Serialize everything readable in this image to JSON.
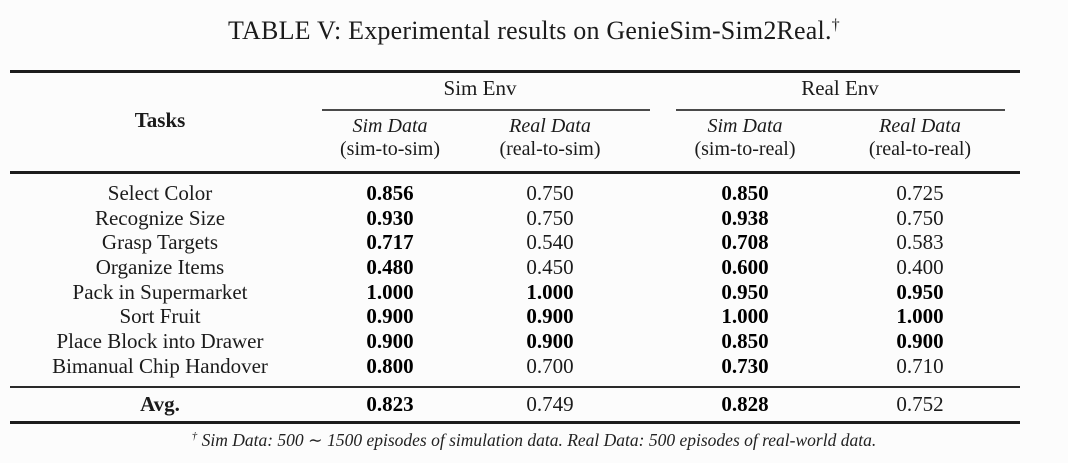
{
  "title": {
    "text": "TABLE V: Experimental results on GenieSim-Sim2Real.",
    "dagger": "†"
  },
  "table": {
    "tasks_header": "Tasks",
    "groups": [
      {
        "label": "Sim Env"
      },
      {
        "label": "Real Env"
      }
    ],
    "columns": [
      {
        "line1": "Sim Data",
        "line2": "(sim-to-sim)"
      },
      {
        "line1": "Real Data",
        "line2": "(real-to-sim)"
      },
      {
        "line1": "Sim Data",
        "line2": "(sim-to-real)"
      },
      {
        "line1": "Real Data",
        "line2": "(real-to-real)"
      }
    ],
    "rows": [
      {
        "task": "Select Color",
        "values": [
          "0.856",
          "0.750",
          "0.850",
          "0.725"
        ],
        "bold": [
          true,
          false,
          true,
          false
        ]
      },
      {
        "task": "Recognize Size",
        "values": [
          "0.930",
          "0.750",
          "0.938",
          "0.750"
        ],
        "bold": [
          true,
          false,
          true,
          false
        ]
      },
      {
        "task": "Grasp Targets",
        "values": [
          "0.717",
          "0.540",
          "0.708",
          "0.583"
        ],
        "bold": [
          true,
          false,
          true,
          false
        ]
      },
      {
        "task": "Organize Items",
        "values": [
          "0.480",
          "0.450",
          "0.600",
          "0.400"
        ],
        "bold": [
          true,
          false,
          true,
          false
        ]
      },
      {
        "task": "Pack in Supermarket",
        "values": [
          "1.000",
          "1.000",
          "0.950",
          "0.950"
        ],
        "bold": [
          true,
          true,
          true,
          true
        ]
      },
      {
        "task": "Sort Fruit",
        "values": [
          "0.900",
          "0.900",
          "1.000",
          "1.000"
        ],
        "bold": [
          true,
          true,
          true,
          true
        ]
      },
      {
        "task": "Place Block into Drawer",
        "values": [
          "0.900",
          "0.900",
          "0.850",
          "0.900"
        ],
        "bold": [
          true,
          true,
          true,
          true
        ]
      },
      {
        "task": "Bimanual Chip Handover",
        "values": [
          "0.800",
          "0.700",
          "0.730",
          "0.710"
        ],
        "bold": [
          true,
          false,
          true,
          false
        ]
      }
    ],
    "avg": {
      "task": "Avg.",
      "values": [
        "0.823",
        "0.749",
        "0.828",
        "0.752"
      ],
      "bold": [
        true,
        false,
        true,
        false
      ]
    }
  },
  "footnote": {
    "dagger": "†",
    "text": "Sim Data: 500 ∼ 1500 episodes of simulation data. Real Data: 500 episodes of real-world data."
  }
}
